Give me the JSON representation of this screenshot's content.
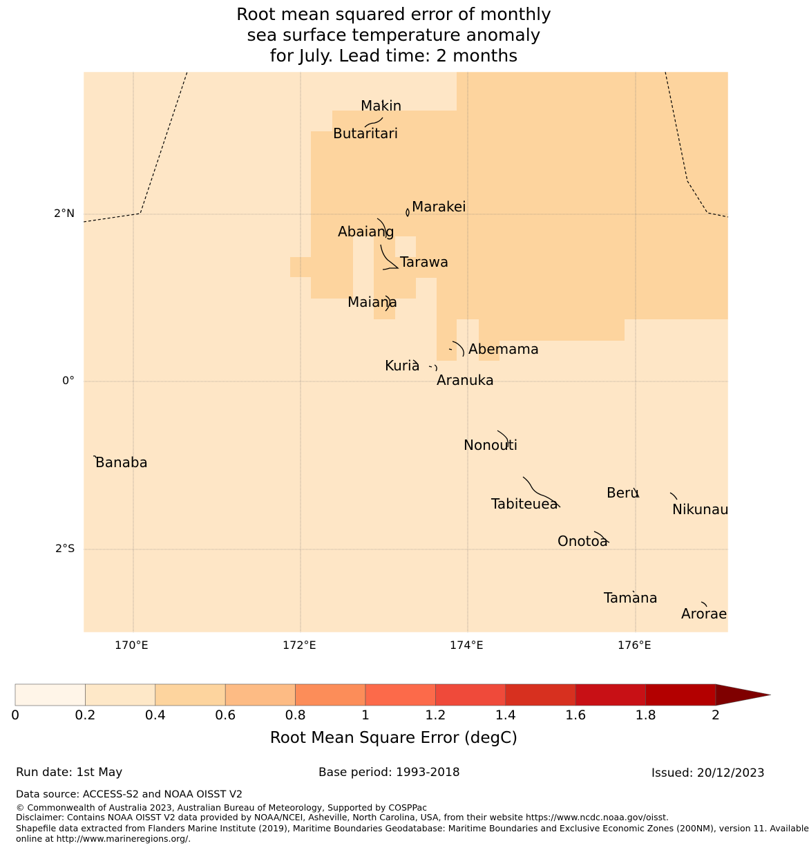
{
  "title": {
    "line1": "Root mean squared error of monthly",
    "line2": "sea surface temperature anomaly",
    "line3": "for July. Lead time: 2 months"
  },
  "map": {
    "lat_labels": [
      "2°N",
      "0°",
      "2°S"
    ],
    "lon_labels": [
      "170°E",
      "172°E",
      "174°E",
      "176°E"
    ],
    "islands": [
      {
        "name": "Makin"
      },
      {
        "name": "Butaritari"
      },
      {
        "name": "Marakei"
      },
      {
        "name": "Abaiang"
      },
      {
        "name": "Tarawa"
      },
      {
        "name": "Maiana"
      },
      {
        "name": "Abemama"
      },
      {
        "name": "Kuria"
      },
      {
        "name": "Aranuka"
      },
      {
        "name": "Nonouti"
      },
      {
        "name": "Banaba"
      },
      {
        "name": "Beru"
      },
      {
        "name": "Tabiteuea"
      },
      {
        "name": "Nikunau"
      },
      {
        "name": "Onotoa"
      },
      {
        "name": "Tamana"
      },
      {
        "name": "Arorae"
      }
    ],
    "colors": {
      "band_0_2": "#fff5e6",
      "band_0_4": "#fee6c6",
      "band_0_6": "#fdd49e"
    }
  },
  "colorbar": {
    "ticks": [
      "0",
      "0.2",
      "0.4",
      "0.6",
      "0.8",
      "1",
      "1.2",
      "1.4",
      "1.6",
      "1.8",
      "2"
    ],
    "colors": [
      "#fff5e8",
      "#fee8c8",
      "#fdd49e",
      "#fdbb84",
      "#fc8d59",
      "#fc6a4a",
      "#ef4a3a",
      "#d7301f",
      "#c81015",
      "#b30000",
      "#7f0000"
    ],
    "label": "Root Mean Square Error (degC)"
  },
  "footer": {
    "run_date": "Run date: 1st May",
    "base_period": "Base period: 1993-2018",
    "issued": "Issued: 20/12/2023",
    "data_source": "Data source: ACCESS-S2 and NOAA OISST V2",
    "copyright": "© Commonwealth of Australia 2023, Australian Bureau of Meteorology, Supported by COSPPac",
    "disclaimer": "Disclaimer: Contains NOAA OISST V2 data provided by NOAA/NCEI, Asheville, North Carolina, USA, from their website https://www.ncdc.noaa.gov/oisst.",
    "shapefile_1": "Shapefile data extracted from Flanders Marine Institute (2019), Maritime Boundaries Geodatabase: Maritime Boundaries and Exclusive Economic Zones (200NM), version 11. Available",
    "shapefile_2": "online at http://www.marineregions.org/."
  }
}
